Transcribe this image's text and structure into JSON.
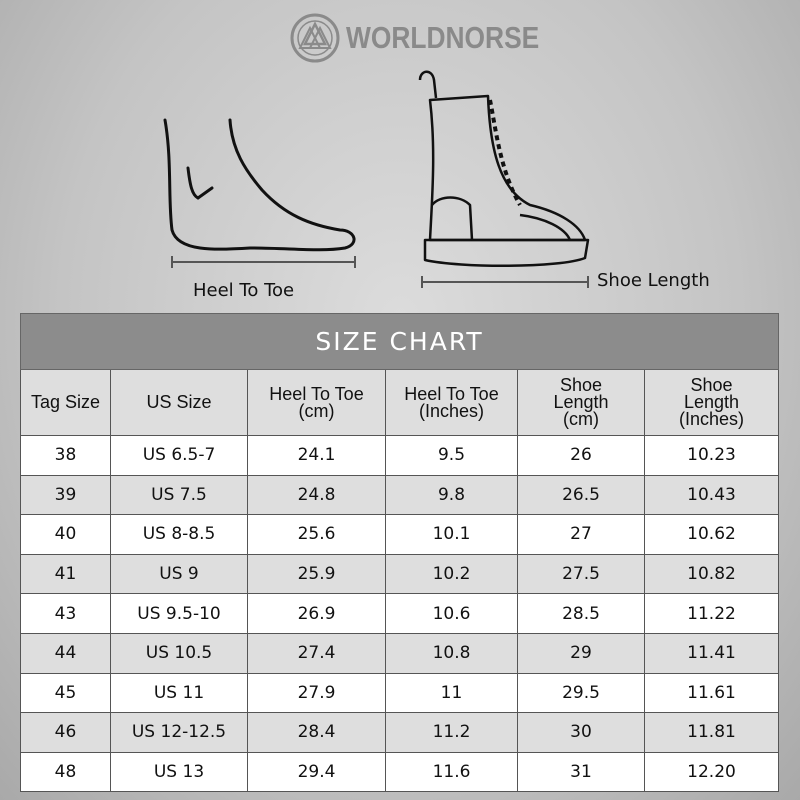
{
  "brand": {
    "name": "WORLDNORSE",
    "logo_icon": "valknut-icon"
  },
  "illustrations": {
    "foot_label": "Heel To Toe",
    "boot_label": "Shoe Length"
  },
  "table": {
    "title": "SIZE CHART",
    "headers": [
      "Tag Size",
      "US Size",
      "Heel To Toe (cm)",
      "Heel To Toe (Inches)",
      "Shoe Length (cm)",
      "Shoe Length (Inches)"
    ],
    "rows": [
      [
        "38",
        "US 6.5-7",
        "24.1",
        "9.5",
        "26",
        "10.23"
      ],
      [
        "39",
        "US 7.5",
        "24.8",
        "9.8",
        "26.5",
        "10.43"
      ],
      [
        "40",
        "US 8-8.5",
        "25.6",
        "10.1",
        "27",
        "10.62"
      ],
      [
        "41",
        "US 9",
        "25.9",
        "10.2",
        "27.5",
        "10.82"
      ],
      [
        "43",
        "US 9.5-10",
        "26.9",
        "10.6",
        "28.5",
        "11.22"
      ],
      [
        "44",
        "US 10.5",
        "27.4",
        "10.8",
        "29",
        "11.41"
      ],
      [
        "45",
        "US 11",
        "27.9",
        "11",
        "29.5",
        "11.61"
      ],
      [
        "46",
        "US 12-12.5",
        "28.4",
        "11.2",
        "30",
        "11.81"
      ],
      [
        "48",
        "US 13",
        "29.4",
        "11.6",
        "31",
        "12.20"
      ]
    ]
  },
  "colors": {
    "title_bar": "#8c8c8c",
    "alt_row": "#dedede",
    "logo": "#8a8a8a"
  }
}
